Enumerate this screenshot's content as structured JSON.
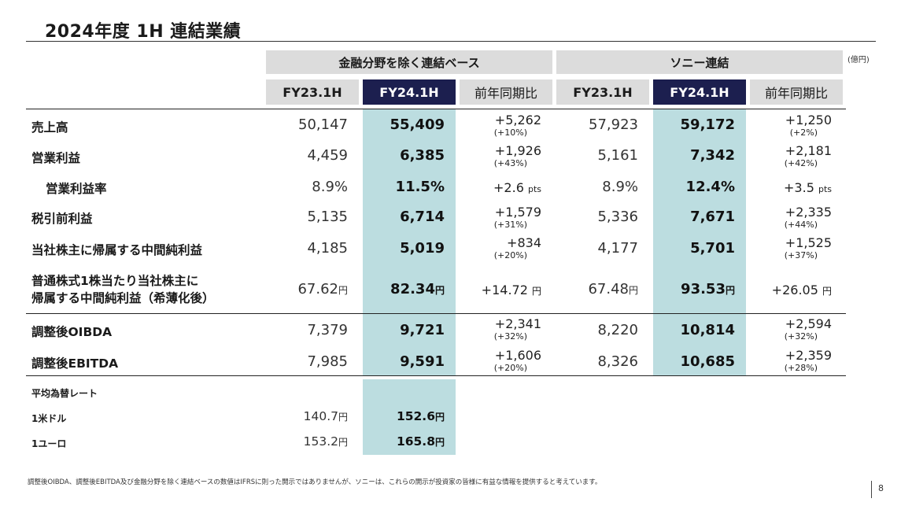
{
  "title": "2024年度 1H 連結業績",
  "unit": "(億円)",
  "groups": {
    "left": "金融分野を除く連結ベース",
    "right": "ソニー連結"
  },
  "columns": {
    "prev": "FY23.1H",
    "curr": "FY24.1H",
    "yoy": "前年同期比"
  },
  "rows": [
    {
      "label": "売上高",
      "l_prev": "50,147",
      "l_curr": "55,409",
      "l_diff": "+5,262",
      "l_pct": "(+10%)",
      "r_prev": "57,923",
      "r_curr": "59,172",
      "r_diff": "+1,250",
      "r_pct": "(+2%)"
    },
    {
      "label": "営業利益",
      "l_prev": "4,459",
      "l_curr": "6,385",
      "l_diff": "+1,926",
      "l_pct": "(+43%)",
      "r_prev": "5,161",
      "r_curr": "7,342",
      "r_diff": "+2,181",
      "r_pct": "(+42%)"
    },
    {
      "label": "営業利益率",
      "l_prev": "8.9%",
      "l_curr": "11.5%",
      "l_diff": "+2.6",
      "r_prev": "8.9%",
      "r_curr": "12.4%",
      "r_diff": "+3.5",
      "pts": "pts"
    },
    {
      "label": "税引前利益",
      "l_prev": "5,135",
      "l_curr": "6,714",
      "l_diff": "+1,579",
      "l_pct": "(+31%)",
      "r_prev": "5,336",
      "r_curr": "7,671",
      "r_diff": "+2,335",
      "r_pct": "(+44%)"
    },
    {
      "label": "当社株主に帰属する中間純利益",
      "l_prev": "4,185",
      "l_curr": "5,019",
      "l_diff": "+834",
      "l_pct": "(+20%)",
      "r_prev": "4,177",
      "r_curr": "5,701",
      "r_diff": "+1,525",
      "r_pct": "(+37%)"
    },
    {
      "label1": "普通株式1株当たり当社株主に",
      "label2": "帰属する中間純利益（希薄化後）",
      "l_prev": "67.62",
      "l_curr": "82.34",
      "l_diff": "+14.72",
      "r_prev": "67.48",
      "r_curr": "93.53",
      "r_diff": "+26.05",
      "yen": "円"
    },
    {
      "label": "調整後OIBDA",
      "l_prev": "7,379",
      "l_curr": "9,721",
      "l_diff": "+2,341",
      "l_pct": "(+32%)",
      "r_prev": "8,220",
      "r_curr": "10,814",
      "r_diff": "+2,594",
      "r_pct": "(+32%)"
    },
    {
      "label": "調整後EBITDA",
      "l_prev": "7,985",
      "l_curr": "9,591",
      "l_diff": "+1,606",
      "l_pct": "(+20%)",
      "r_prev": "8,326",
      "r_curr": "10,685",
      "r_diff": "+2,359",
      "r_pct": "(+28%)"
    }
  ],
  "fx": {
    "title": "平均為替レート",
    "usd": {
      "label": "1米ドル",
      "prev": "140.7",
      "curr": "152.6"
    },
    "eur": {
      "label": "1ユーロ",
      "prev": "153.2",
      "curr": "165.8"
    },
    "yen": "円"
  },
  "footnote": "調整後OIBDA、調整後EBITDA及び金融分野を除く連結ベースの数値はIFRSに則った開示ではありませんが、ソニーは、これらの開示が投資家の皆様に有益な情報を提供すると考えています。",
  "page_number": "8"
}
